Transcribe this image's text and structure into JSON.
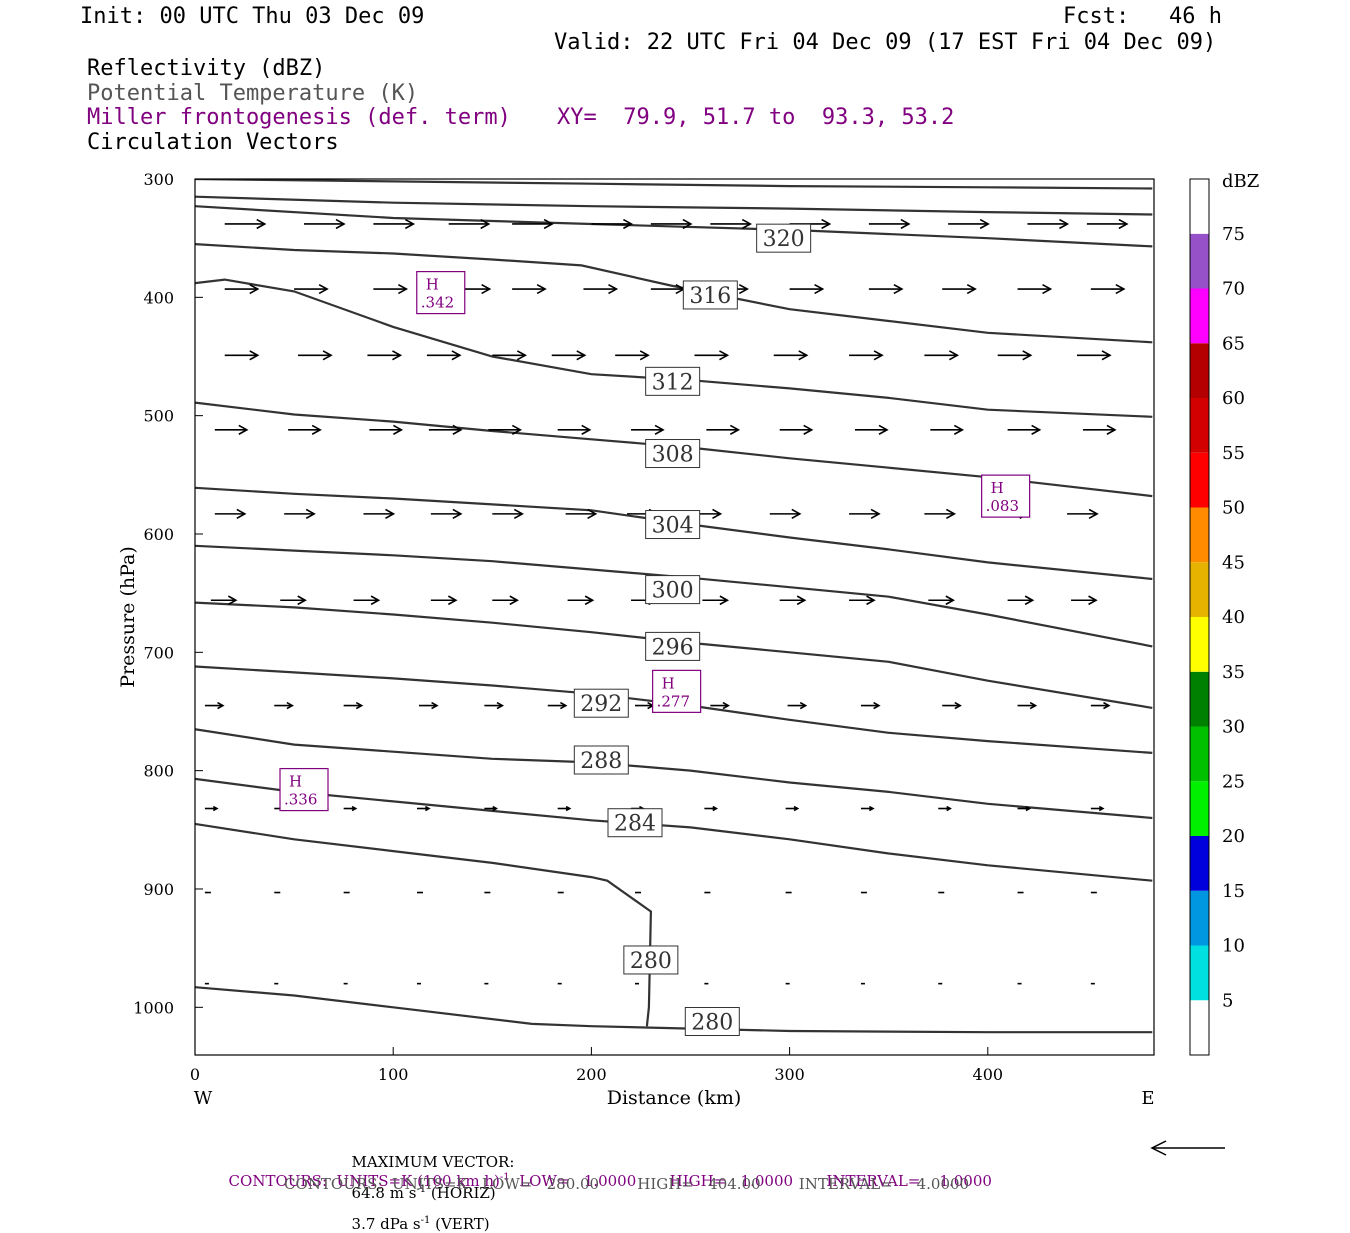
{
  "header": {
    "init": "Init: 00 UTC Thu 03 Dec 09",
    "fcst": "Fcst:   46 h",
    "valid": "Valid: 22 UTC Fri 04 Dec 09 (17 EST Fri 04 Dec 09)",
    "fields": [
      {
        "label": "Reflectivity (dBZ)",
        "color": "#000000"
      },
      {
        "label": "Potential Temperature (K)",
        "color": "#555555"
      },
      {
        "label": "Miller frontogenesis (def. term)",
        "color": "#800080"
      },
      {
        "label": "Circulation Vectors",
        "color": "#000000"
      }
    ],
    "xy": "XY=  79.9, 51.7 to  93.3, 53.2"
  },
  "chart_data": {
    "type": "cross-section",
    "xlabel": "Distance (km)",
    "ylabel": "Pressure (hPa)",
    "xlim": [
      0,
      483
    ],
    "ylim": [
      1040,
      300
    ],
    "x_ticks": [
      0,
      100,
      200,
      300,
      400
    ],
    "y_ticks": [
      300,
      400,
      500,
      600,
      700,
      800,
      900,
      1000
    ],
    "x_end_labels": {
      "left": "W",
      "right": "E"
    },
    "theta_contours": [
      {
        "value": 280,
        "points": [
          [
            0,
            983
          ],
          [
            50,
            990
          ],
          [
            100,
            1000
          ],
          [
            170,
            1014
          ],
          [
            200,
            1016
          ],
          [
            250,
            1018
          ],
          [
            300,
            1020
          ],
          [
            400,
            1021
          ],
          [
            483,
            1021
          ]
        ],
        "label_at": [
          261,
          1012
        ]
      },
      {
        "value": 280,
        "points": [
          [
            0,
            845
          ],
          [
            50,
            858
          ],
          [
            100,
            868
          ],
          [
            150,
            878
          ],
          [
            200,
            890
          ],
          [
            208,
            893
          ],
          [
            230,
            919
          ],
          [
            229,
            1000
          ],
          [
            228,
            1016
          ]
        ],
        "label_at": [
          230,
          960
        ]
      },
      {
        "value": 284,
        "points": [
          [
            0,
            807
          ],
          [
            50,
            818
          ],
          [
            100,
            826
          ],
          [
            150,
            834
          ],
          [
            200,
            842
          ],
          [
            250,
            848
          ],
          [
            300,
            858
          ],
          [
            350,
            870
          ],
          [
            400,
            880
          ],
          [
            483,
            893
          ]
        ],
        "label_at": [
          222,
          844
        ]
      },
      {
        "value": 288,
        "points": [
          [
            0,
            765
          ],
          [
            50,
            778
          ],
          [
            100,
            784
          ],
          [
            150,
            790
          ],
          [
            200,
            793
          ],
          [
            250,
            800
          ],
          [
            300,
            810
          ],
          [
            350,
            818
          ],
          [
            400,
            828
          ],
          [
            483,
            840
          ]
        ],
        "label_at": [
          205,
          791
        ]
      },
      {
        "value": 292,
        "points": [
          [
            0,
            712
          ],
          [
            50,
            717
          ],
          [
            100,
            722
          ],
          [
            150,
            728
          ],
          [
            200,
            735
          ],
          [
            250,
            745
          ],
          [
            300,
            757
          ],
          [
            350,
            768
          ],
          [
            400,
            775
          ],
          [
            483,
            785
          ]
        ],
        "label_at": [
          205,
          743
        ]
      },
      {
        "value": 296,
        "points": [
          [
            0,
            658
          ],
          [
            50,
            662
          ],
          [
            100,
            668
          ],
          [
            150,
            675
          ],
          [
            200,
            683
          ],
          [
            250,
            692
          ],
          [
            300,
            700
          ],
          [
            350,
            708
          ],
          [
            400,
            724
          ],
          [
            483,
            747
          ]
        ],
        "label_at": [
          241,
          695
        ]
      },
      {
        "value": 300,
        "points": [
          [
            0,
            610
          ],
          [
            50,
            614
          ],
          [
            100,
            618
          ],
          [
            150,
            623
          ],
          [
            200,
            630
          ],
          [
            250,
            637
          ],
          [
            300,
            645
          ],
          [
            350,
            653
          ],
          [
            400,
            668
          ],
          [
            483,
            695
          ]
        ],
        "label_at": [
          241,
          647
        ]
      },
      {
        "value": 304,
        "points": [
          [
            0,
            561
          ],
          [
            50,
            566
          ],
          [
            100,
            570
          ],
          [
            150,
            575
          ],
          [
            200,
            580
          ],
          [
            250,
            592
          ],
          [
            300,
            603
          ],
          [
            350,
            613
          ],
          [
            400,
            624
          ],
          [
            483,
            638
          ]
        ],
        "label_at": [
          241,
          592
        ]
      },
      {
        "value": 308,
        "points": [
          [
            0,
            489
          ],
          [
            50,
            499
          ],
          [
            100,
            505
          ],
          [
            150,
            513
          ],
          [
            200,
            520
          ],
          [
            250,
            527
          ],
          [
            300,
            536
          ],
          [
            350,
            544
          ],
          [
            400,
            552
          ],
          [
            483,
            568
          ]
        ],
        "label_at": [
          241,
          532
        ]
      },
      {
        "value": 312,
        "points": [
          [
            0,
            388
          ],
          [
            15,
            385
          ],
          [
            50,
            395
          ],
          [
            100,
            425
          ],
          [
            150,
            450
          ],
          [
            200,
            465
          ],
          [
            250,
            470
          ],
          [
            300,
            477
          ],
          [
            350,
            485
          ],
          [
            400,
            495
          ],
          [
            483,
            501
          ]
        ],
        "label_at": [
          241,
          471
        ]
      },
      {
        "value": 316,
        "points": [
          [
            0,
            355
          ],
          [
            50,
            360
          ],
          [
            100,
            363
          ],
          [
            150,
            368
          ],
          [
            195,
            373
          ],
          [
            240,
            390
          ],
          [
            300,
            410
          ],
          [
            350,
            420
          ],
          [
            400,
            430
          ],
          [
            483,
            438
          ]
        ],
        "label_at": [
          260,
          398
        ]
      },
      {
        "value": 320,
        "points": [
          [
            0,
            323
          ],
          [
            100,
            333
          ],
          [
            200,
            338
          ],
          [
            300,
            343
          ],
          [
            400,
            350
          ],
          [
            483,
            357
          ]
        ],
        "label_at": [
          297,
          350
        ]
      },
      {
        "value": 324,
        "points": [
          [
            0,
            315
          ],
          [
            100,
            320
          ],
          [
            200,
            323
          ],
          [
            300,
            325
          ],
          [
            400,
            328
          ],
          [
            483,
            330
          ]
        ]
      },
      {
        "value": 328,
        "points": [
          [
            0,
            300
          ],
          [
            100,
            302
          ],
          [
            200,
            304
          ],
          [
            300,
            306
          ],
          [
            400,
            307
          ],
          [
            483,
            308
          ]
        ]
      }
    ],
    "frontogenesis_highs": [
      {
        "label": "H",
        "value": ".342",
        "at": [
          124,
          396
        ]
      },
      {
        "label": "H",
        "value": ".083",
        "at": [
          409,
          568
        ]
      },
      {
        "label": "H",
        "value": ".277",
        "at": [
          243,
          733
        ]
      },
      {
        "label": "H",
        "value": ".336",
        "at": [
          55,
          816
        ]
      }
    ],
    "vector_rows": [
      {
        "p": 338,
        "xs": [
          15,
          55,
          90,
          128,
          160,
          200,
          230,
          260,
          300,
          340,
          380,
          420,
          450
        ],
        "len": 40
      },
      {
        "p": 393,
        "xs": [
          15,
          50,
          90,
          132,
          160,
          196,
          230,
          262,
          300,
          340,
          377,
          415,
          452
        ],
        "len": 33
      },
      {
        "p": 449,
        "xs": [
          15,
          52,
          87,
          117,
          150,
          180,
          212,
          252,
          292,
          330,
          368,
          405,
          445
        ],
        "len": 33
      },
      {
        "p": 512,
        "xs": [
          10,
          47,
          88,
          118,
          148,
          183,
          220,
          258,
          295,
          333,
          371,
          410,
          448
        ],
        "len": 32
      },
      {
        "p": 583,
        "xs": [
          10,
          45,
          85,
          119,
          150,
          187,
          218,
          250,
          290,
          330,
          368,
          405,
          440
        ],
        "len": 30
      },
      {
        "p": 656,
        "xs": [
          8,
          43,
          80,
          119,
          150,
          188,
          220,
          256,
          295,
          330,
          370,
          410,
          442
        ],
        "len": 25
      },
      {
        "p": 745,
        "xs": [
          5,
          40,
          75,
          113,
          146,
          178,
          222,
          260,
          299,
          336,
          377,
          415,
          452
        ],
        "len": 18
      },
      {
        "p": 832,
        "xs": [
          5,
          40,
          75,
          112,
          146,
          183,
          220,
          257,
          298,
          336,
          375,
          415,
          452
        ],
        "len": 12
      },
      {
        "p": 903,
        "xs": [
          5,
          40,
          75,
          112,
          146,
          183,
          222,
          257,
          298,
          336,
          375,
          415,
          452
        ],
        "len": 6
      },
      {
        "p": 980,
        "xs": [
          5,
          40,
          75,
          112,
          146,
          183,
          222,
          257,
          298,
          336,
          375,
          415,
          452
        ],
        "len": 4
      }
    ]
  },
  "colorbar": {
    "title": "dBZ",
    "segments": [
      {
        "from": 0,
        "to": 5,
        "color": "#ffffff"
      },
      {
        "from": 5,
        "to": 10,
        "color": "#00e0e0"
      },
      {
        "from": 10,
        "to": 15,
        "color": "#0096e0"
      },
      {
        "from": 15,
        "to": 20,
        "color": "#0000dc"
      },
      {
        "from": 20,
        "to": 25,
        "color": "#00f000"
      },
      {
        "from": 25,
        "to": 30,
        "color": "#00c000"
      },
      {
        "from": 30,
        "to": 35,
        "color": "#008000"
      },
      {
        "from": 35,
        "to": 40,
        "color": "#ffff00"
      },
      {
        "from": 40,
        "to": 45,
        "color": "#e6b400"
      },
      {
        "from": 45,
        "to": 50,
        "color": "#ff8c00"
      },
      {
        "from": 50,
        "to": 55,
        "color": "#ff0000"
      },
      {
        "from": 55,
        "to": 60,
        "color": "#d20000"
      },
      {
        "from": 60,
        "to": 65,
        "color": "#b40000"
      },
      {
        "from": 65,
        "to": 70,
        "color": "#ff00ff"
      },
      {
        "from": 70,
        "to": 75,
        "color": "#9650c8"
      },
      {
        "from": 75,
        "to": 80,
        "color": "#ffffff"
      }
    ],
    "labels": [
      "5",
      "10",
      "15",
      "20",
      "25",
      "30",
      "35",
      "40",
      "45",
      "50",
      "55",
      "60",
      "65",
      "70",
      "75"
    ]
  },
  "footer": {
    "max_vector_label": "MAXIMUM VECTOR:",
    "max_vector_horiz": "64.8 m s",
    "horiz_sup": "-1",
    "horiz_suffix": " (HORIZ)",
    "max_vector_vert": "3.7 dPa s",
    "vert_sup": "-1",
    "vert_suffix": " (VERT)",
    "contours_purple_a": "CONTOURS:  UNITS=K (100 km h)",
    "contours_purple_sup": "-1",
    "contours_purple_b": "  LOW=   1.0000       HIGH=   1.0000       INTERVAL=    1.0000",
    "contours_black": "CONTOURS:  UNITS=K   LOW=   280.00        HIGH=   404.00        INTERVAL=     4.0000"
  }
}
